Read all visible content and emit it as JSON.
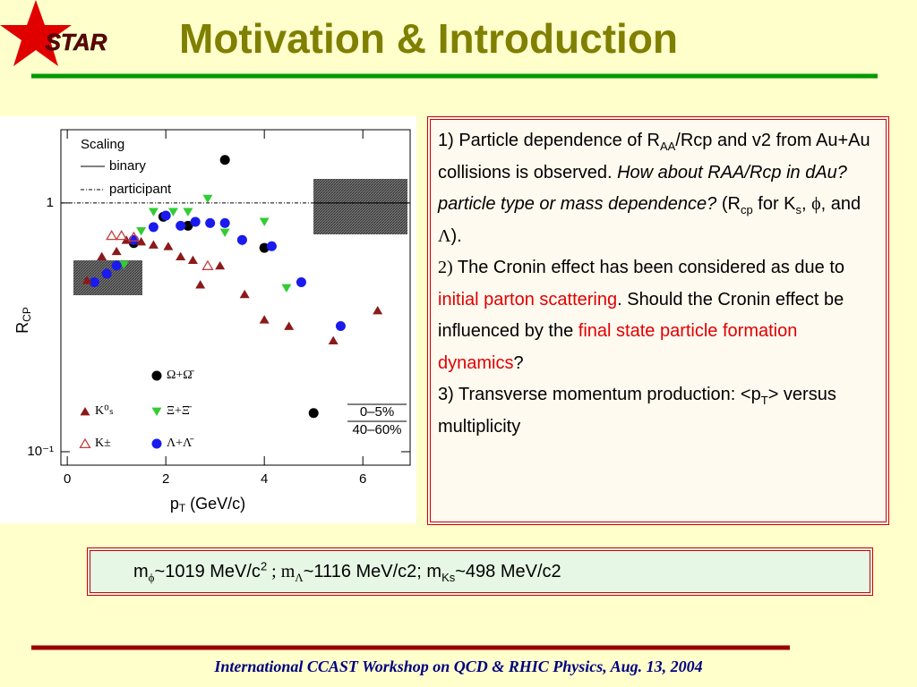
{
  "logo": "STAR",
  "title": "Motivation & Introduction",
  "chart_data": {
    "type": "scatter",
    "xlabel": [
      "p",
      "T",
      " (GeV/c)"
    ],
    "ylabel": [
      "R",
      "CP"
    ],
    "xlim": [
      -0.13,
      6.96
    ],
    "ylim": [
      0.0883,
      1.97
    ],
    "log_y": true,
    "xticks": [
      0,
      2,
      4,
      6
    ],
    "yticks": [
      {
        "value": 0.1,
        "label": "10⁻¹"
      },
      1
    ],
    "scaling_title": "Scaling",
    "scaling_lines": [
      "binary",
      "participant"
    ],
    "centrality": [
      "0–5%",
      "40–60%"
    ],
    "series": [
      {
        "name": "Ω+Ω̄",
        "color": "#000000",
        "marker": "circle",
        "filled": true,
        "x": [
          1.35,
          1.95,
          2.45,
          3.2,
          4.0,
          5.0
        ],
        "values": [
          0.69,
          0.88,
          0.81,
          1.49,
          0.66,
          0.143
        ]
      },
      {
        "name": "Ξ+Ξ̄",
        "color": "#33cc33",
        "marker": "triangle-down",
        "filled": true,
        "x": [
          1.15,
          1.5,
          1.75,
          2.15,
          2.45,
          2.85,
          3.2,
          3.55,
          4.0,
          4.45
        ],
        "values": [
          0.565,
          0.77,
          0.92,
          0.92,
          0.92,
          1.04,
          0.76,
          0.7,
          0.84,
          0.455
        ]
      },
      {
        "name": "Λ+Λ̄",
        "color": "#1a1aee",
        "marker": "circle",
        "filled": true,
        "x": [
          0.55,
          0.8,
          1.0,
          1.35,
          1.75,
          2.0,
          2.3,
          2.6,
          2.9,
          3.2,
          3.55,
          4.15,
          4.75,
          5.55
        ],
        "values": [
          0.48,
          0.52,
          0.56,
          0.71,
          0.8,
          0.89,
          0.81,
          0.84,
          0.83,
          0.83,
          0.71,
          0.67,
          0.48,
          0.32
        ]
      },
      {
        "name": "K⁰ₛ",
        "color": "#8b1a1a",
        "marker": "triangle-up",
        "filled": true,
        "x": [
          0.4,
          0.7,
          1.0,
          1.2,
          1.5,
          1.75,
          2.05,
          2.3,
          2.55,
          2.7,
          3.1,
          3.6,
          4.0,
          4.5,
          5.4,
          6.3
        ],
        "values": [
          0.49,
          0.61,
          0.64,
          0.71,
          0.7,
          0.68,
          0.67,
          0.61,
          0.59,
          0.47,
          0.56,
          0.43,
          0.34,
          0.32,
          0.28,
          0.37
        ]
      },
      {
        "name": "K±",
        "color": "#c04040",
        "marker": "triangle-up",
        "filled": false,
        "x": [
          0.9,
          1.1,
          1.35,
          2.85
        ],
        "values": [
          0.74,
          0.74,
          0.73,
          0.56
        ]
      }
    ]
  },
  "notes": {
    "p1": [
      "1) Particle dependence of R",
      "AA",
      "/Rcp and v2 from Au+Au collisions is observed. ",
      "How about RAA/Rcp in dAu? particle type or mass dependence?",
      " (R",
      "cp",
      "  for K",
      "s",
      ", ",
      "ϕ",
      ",  and ",
      "Λ",
      ")."
    ],
    "p2": [
      "2)",
      " The Cronin effect has been considered as due to ",
      "initial parton scattering",
      ". Should the Cronin effect be influenced by the ",
      "final state particle formation dynamics",
      "?"
    ],
    "p3": [
      "3) Transverse momentum production: <p",
      "T",
      "> versus multiplicity"
    ]
  },
  "masses": [
    "m",
    "ϕ",
    "~1019 MeV/c",
    "2",
    " ; m",
    "Λ",
    "~1116 MeV/c2; m",
    "Ks",
    "~498 MeV/c2"
  ],
  "footer": "International CCAST Workshop on QCD & RHIC Physics, Aug. 13, 2004"
}
